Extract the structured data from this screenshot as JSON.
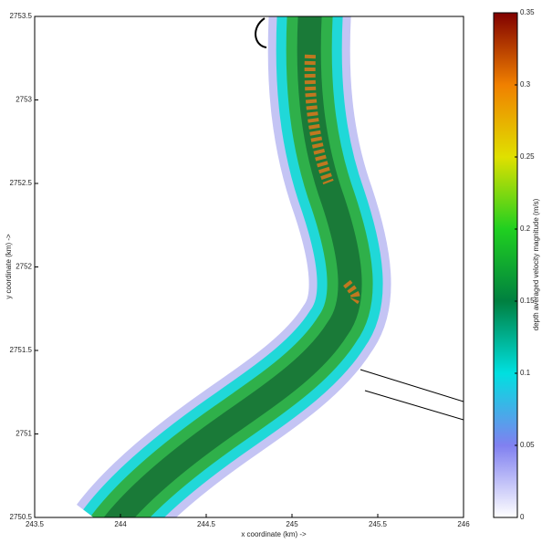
{
  "chart_data": {
    "type": "contour",
    "xlabel": "x coordinate (km) ->",
    "ylabel": "y coordinate (km) ->",
    "xlim": [
      243.5,
      246
    ],
    "xticks": [
      243.5,
      244,
      244.5,
      245,
      245.5,
      246
    ],
    "ylim": [
      2750.5,
      2753.5
    ],
    "yticks": [
      2750.5,
      2751,
      2751.5,
      2752,
      2752.5,
      2753,
      2753.5
    ],
    "colorbar": {
      "label": "depth averaged velocity magnitude (m/s)",
      "lim": [
        0,
        0.35
      ],
      "ticks": [
        0,
        0.05,
        0.1,
        0.15,
        0.2,
        0.25,
        0.3,
        0.35
      ],
      "colormap": [
        "#ffffff",
        "#8080f0",
        "#00e0e0",
        "#008040",
        "#20d020",
        "#e0e000",
        "#f08000",
        "#800000"
      ]
    }
  }
}
